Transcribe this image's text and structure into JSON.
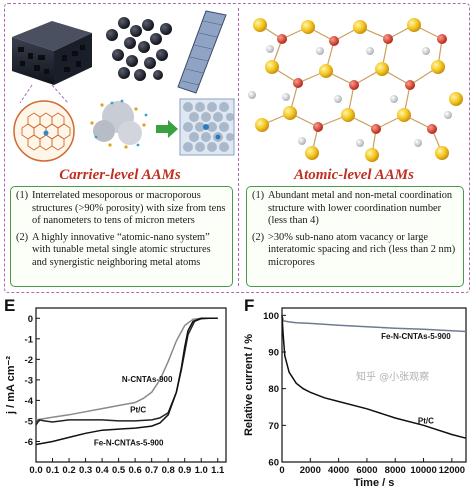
{
  "carrier": {
    "heading": "Carrier-level AAMs",
    "items": [
      {
        "num": "(1)",
        "text": "Interrelated mesoporous or macroporous structures (>90% porosity) with size from tens of nanometers to tens of micron meters"
      },
      {
        "num": "(2)",
        "text": "A highly innovative “atomic-nano system” with tunable metal single atomic structures and synergistic neighboring metal atoms"
      }
    ]
  },
  "atomic": {
    "heading": "Atomic-level AAMs",
    "items": [
      {
        "num": "(1)",
        "text": "Abundant metal and non-metal coordination structure with lower coordination number (less than 4)"
      },
      {
        "num": "(2)",
        "text": ">30% sub-nano atom vacancy or large interatomic spacing and rich (less than 2 nm) micropores"
      }
    ]
  },
  "panels": {
    "e": "E",
    "f": "F"
  },
  "watermark": "知乎 @小张观察",
  "colors": {
    "dashed_border": "#b06bb0",
    "heading": "#c03020",
    "box_border": "#4a9a4a"
  },
  "chart_data": [
    {
      "type": "line",
      "panel": "E",
      "title": "",
      "xlabel": "",
      "ylabel": "j / mA cm⁻²",
      "xlim": [
        0,
        1.15
      ],
      "ylim": [
        -7,
        0.5
      ],
      "xticks": [
        "0.0",
        "0.1",
        "0.2",
        "0.3",
        "0.4",
        "0.5",
        "0.6",
        "0.7",
        "0.8",
        "0.9",
        "1.0",
        "1.1"
      ],
      "yticks": [
        "-6",
        "-5",
        "-4",
        "-3",
        "-2",
        "-1",
        "0"
      ],
      "grid": false,
      "series": [
        {
          "name": "N-CNTAs-900",
          "color": "#8a8a8a",
          "x": [
            0.0,
            0.1,
            0.2,
            0.3,
            0.4,
            0.5,
            0.6,
            0.65,
            0.7,
            0.75,
            0.8,
            0.85,
            0.9,
            0.95,
            1.0,
            1.05,
            1.1
          ],
          "y": [
            -4.95,
            -4.82,
            -4.7,
            -4.55,
            -4.4,
            -4.25,
            -4.1,
            -3.9,
            -3.6,
            -3.0,
            -2.1,
            -1.1,
            -0.35,
            -0.05,
            0.0,
            0.0,
            0.0
          ]
        },
        {
          "name": "Pt/C",
          "color": "#222222",
          "x": [
            0.0,
            0.02,
            0.05,
            0.1,
            0.2,
            0.3,
            0.4,
            0.5,
            0.6,
            0.7,
            0.75,
            0.8,
            0.85,
            0.88,
            0.92,
            0.96,
            1.0,
            1.05,
            1.1
          ],
          "y": [
            -5.2,
            -4.95,
            -5.0,
            -5.05,
            -4.95,
            -4.95,
            -4.95,
            -5.0,
            -5.0,
            -4.95,
            -4.85,
            -4.6,
            -3.6,
            -2.5,
            -0.8,
            -0.15,
            -0.02,
            0.0,
            0.0
          ]
        },
        {
          "name": "Fe-N-CNTAs-5-900",
          "color": "#111111",
          "x": [
            0.0,
            0.1,
            0.2,
            0.3,
            0.4,
            0.5,
            0.6,
            0.7,
            0.75,
            0.8,
            0.85,
            0.88,
            0.9,
            0.92,
            0.95,
            1.0,
            1.05,
            1.1
          ],
          "y": [
            -6.15,
            -6.0,
            -5.8,
            -5.6,
            -5.45,
            -5.4,
            -5.35,
            -5.25,
            -5.1,
            -4.7,
            -3.6,
            -2.4,
            -1.4,
            -0.6,
            -0.15,
            0.0,
            0.0,
            0.0
          ]
        }
      ]
    },
    {
      "type": "line",
      "panel": "F",
      "title": "",
      "xlabel": "Time / s",
      "ylabel": "Relative current / %",
      "xlim": [
        0,
        13000
      ],
      "ylim": [
        60,
        102
      ],
      "xticks": [
        "0",
        "2000",
        "4000",
        "6000",
        "8000",
        "10000",
        "12000"
      ],
      "yticks": [
        "60",
        "70",
        "80",
        "90",
        "100"
      ],
      "grid": false,
      "series": [
        {
          "name": "Fe-N-CNTAs-5-900",
          "color": "#707a90",
          "x": [
            0,
            100,
            500,
            1000,
            2000,
            4000,
            6000,
            8000,
            10000,
            12000,
            13000
          ],
          "y": [
            100,
            98.5,
            98.2,
            98.0,
            97.8,
            97.3,
            96.9,
            96.5,
            96.2,
            95.8,
            95.6
          ]
        },
        {
          "name": "Pt/C",
          "color": "#111111",
          "x": [
            0,
            80,
            200,
            500,
            1000,
            1500,
            2000,
            3000,
            4000,
            6000,
            8000,
            10000,
            12000,
            13000
          ],
          "y": [
            100,
            95,
            89,
            84.5,
            81.5,
            80,
            79,
            77.5,
            76.5,
            74.5,
            72,
            70,
            67.5,
            66.5
          ]
        }
      ]
    }
  ]
}
